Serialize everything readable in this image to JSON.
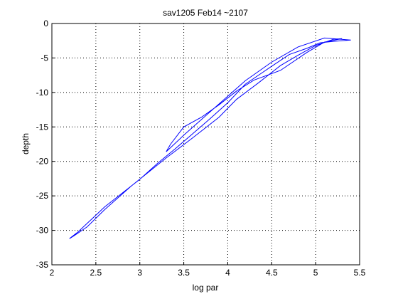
{
  "chart_data": {
    "type": "line",
    "title": "sav1205 Feb14 ~2107",
    "x_label": "log par",
    "y_label": "depth",
    "x": [
      5.4,
      5.2,
      5.05,
      4.9,
      4.7,
      4.5,
      4.35,
      4.2,
      4.0,
      3.8,
      3.6,
      3.4,
      3.2,
      3.0,
      2.8,
      2.6,
      2.45,
      2.3,
      2.2,
      2.25,
      2.4,
      2.6,
      2.9,
      3.3,
      3.6,
      3.9,
      4.1,
      4.35,
      4.6,
      4.8,
      5.0,
      5.2,
      5.3,
      5.1,
      4.9,
      4.6,
      4.3,
      4.1,
      3.9,
      3.7,
      3.5,
      3.35,
      3.3,
      3.5,
      3.8,
      4.2,
      4.5,
      4.8,
      5.1,
      5.4
    ],
    "series": [
      {
        "name": "depth",
        "color": "#0000ff",
        "values": [
          -2.4,
          -2.6,
          -2.8,
          -3.6,
          -4.5,
          -6.2,
          -7.5,
          -8.8,
          -11.5,
          -13.8,
          -16.0,
          -18.2,
          -20.3,
          -22.6,
          -24.6,
          -26.6,
          -28.4,
          -30.2,
          -31.2,
          -30.8,
          -29.5,
          -27.0,
          -23.6,
          -19.5,
          -16.6,
          -13.6,
          -11.0,
          -8.6,
          -6.1,
          -4.6,
          -3.2,
          -2.3,
          -2.2,
          -2.7,
          -4.2,
          -6.8,
          -8.2,
          -9.8,
          -11.8,
          -13.6,
          -15.0,
          -17.5,
          -18.6,
          -16.2,
          -12.8,
          -8.3,
          -5.6,
          -3.4,
          -2.1,
          -2.4
        ]
      }
    ],
    "xlim": [
      2,
      5.5
    ],
    "xticks": [
      2,
      2.5,
      3,
      3.5,
      4,
      4.5,
      5,
      5.5
    ],
    "ylim": [
      -35,
      0
    ],
    "yticks": [
      0,
      -5,
      -10,
      -15,
      -20,
      -25,
      -30,
      -35
    ],
    "grid": true
  }
}
